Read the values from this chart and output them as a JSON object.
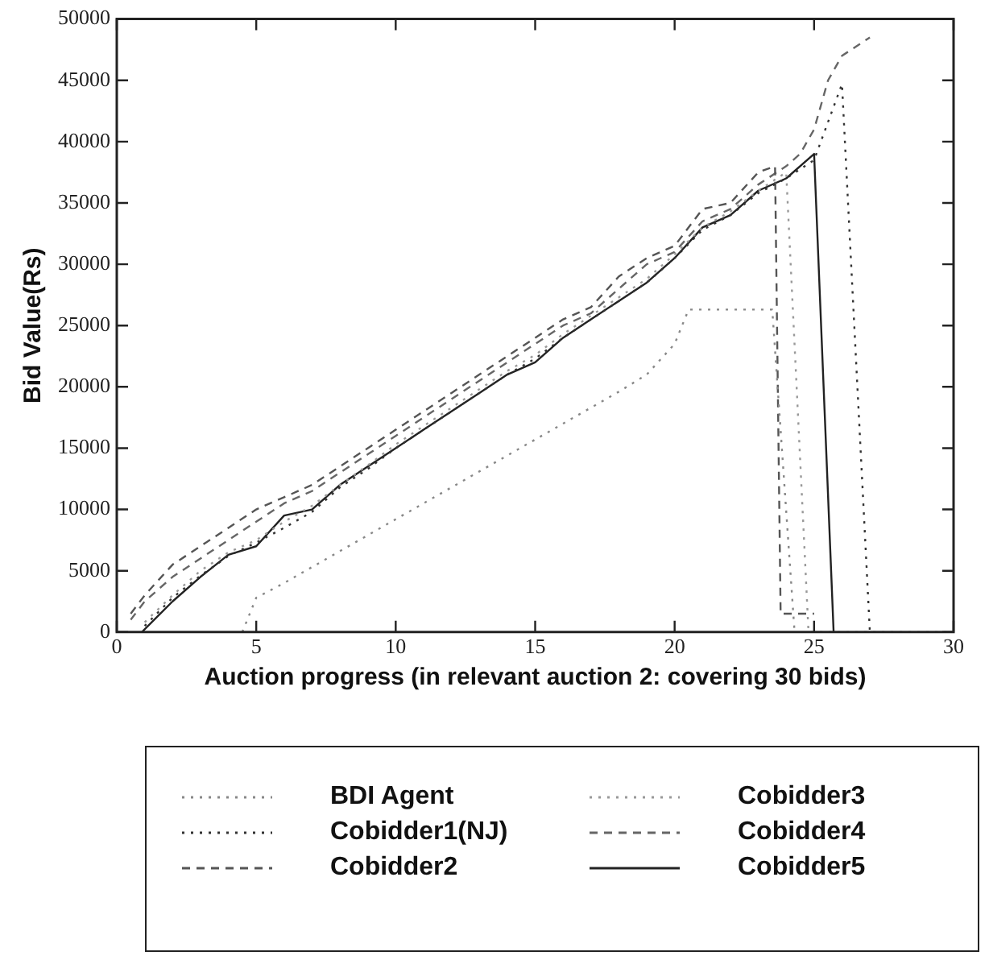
{
  "chart_data": {
    "type": "line",
    "xlabel": "Auction progress (in relevant auction 2: covering 30 bids)",
    "ylabel": "Bid Value(Rs)",
    "xlim": [
      0,
      30
    ],
    "ylim": [
      0,
      50000
    ],
    "xticks": [
      0,
      5,
      10,
      15,
      20,
      25,
      30
    ],
    "yticks": [
      0,
      5000,
      10000,
      15000,
      20000,
      25000,
      30000,
      35000,
      40000,
      45000,
      50000
    ],
    "grid": false,
    "legend": "bottom",
    "marker": "none",
    "series": [
      {
        "name": "BDI Agent",
        "color": "#888888",
        "line_style": "dotted",
        "x": [
          4.5,
          5,
          6,
          7,
          8,
          9,
          10,
          11,
          12,
          13,
          14,
          15,
          16,
          17,
          18,
          19,
          20,
          20.5,
          23.5,
          24.3
        ],
        "values": [
          0,
          2800,
          4000,
          5300,
          6600,
          7900,
          9200,
          10500,
          11800,
          13100,
          14400,
          15700,
          17000,
          18300,
          19600,
          21000,
          23500,
          26300,
          26300,
          0
        ]
      },
      {
        "name": "Cobidder1(NJ)",
        "color": "#333333",
        "line_style": "dotted",
        "x": [
          1,
          2,
          3,
          4,
          5,
          6,
          7,
          8,
          9,
          10,
          11,
          12,
          13,
          14,
          15,
          16,
          17,
          18,
          19,
          20,
          21,
          22,
          23,
          24,
          25,
          26,
          27
        ],
        "values": [
          500,
          2800,
          4600,
          6200,
          7300,
          8500,
          9800,
          11800,
          13300,
          15000,
          16500,
          18000,
          19500,
          21000,
          22300,
          24000,
          25500,
          27000,
          28500,
          30500,
          32800,
          34000,
          35800,
          37000,
          38500,
          44700,
          0
        ]
      },
      {
        "name": "Cobidder2",
        "color": "#555555",
        "line_style": "dashed",
        "x": [
          0.5,
          1,
          2,
          3,
          4,
          5,
          6,
          7,
          8,
          9,
          10,
          11,
          12,
          13,
          14,
          15,
          16,
          17,
          18,
          19,
          20,
          21,
          22,
          23,
          23.6,
          23.8,
          25
        ],
        "values": [
          1500,
          3000,
          5500,
          7000,
          8500,
          10000,
          11000,
          12000,
          13500,
          15000,
          16500,
          18000,
          19500,
          21000,
          22500,
          24000,
          25500,
          26500,
          29000,
          30500,
          31500,
          34500,
          35000,
          37500,
          38000,
          1500,
          1500
        ]
      },
      {
        "name": "Cobidder3",
        "color": "#999999",
        "line_style": "dotted",
        "x": [
          1,
          2,
          3,
          4,
          5,
          6,
          7,
          8,
          9,
          10,
          11,
          12,
          13,
          14,
          15,
          16,
          17,
          18,
          19,
          20,
          21,
          22,
          23,
          24,
          24.8,
          27,
          30
        ],
        "values": [
          800,
          3000,
          5000,
          6500,
          7500,
          9000,
          10300,
          12000,
          13600,
          15300,
          16800,
          18300,
          19800,
          21300,
          22600,
          24300,
          25800,
          27300,
          28800,
          30800,
          33000,
          34300,
          36000,
          37500,
          0,
          0,
          0
        ]
      },
      {
        "name": "Cobidder4",
        "color": "#666666",
        "line_style": "dashed",
        "x": [
          0.5,
          1,
          2,
          3,
          4,
          5,
          6,
          7,
          8,
          9,
          10,
          11,
          12,
          13,
          14,
          15,
          16,
          17,
          18,
          19,
          20,
          21,
          22,
          23,
          24,
          24.5,
          25,
          25.5,
          26,
          27
        ],
        "values": [
          1000,
          2500,
          4500,
          6000,
          7500,
          9000,
          10500,
          11500,
          13000,
          14500,
          16000,
          17500,
          19000,
          20500,
          22000,
          23500,
          25000,
          26000,
          28000,
          30000,
          31000,
          33500,
          34500,
          36500,
          38000,
          39000,
          41000,
          45000,
          47000,
          48500
        ]
      },
      {
        "name": "Cobidder5",
        "color": "#222222",
        "line_style": "solid",
        "x": [
          0.9,
          2,
          3,
          4,
          5,
          6,
          7,
          8,
          9,
          10,
          11,
          12,
          13,
          14,
          15,
          16,
          17,
          18,
          19,
          20,
          21,
          22,
          23,
          24,
          25,
          25.7
        ],
        "values": [
          0,
          2500,
          4500,
          6300,
          7000,
          9500,
          10000,
          12000,
          13500,
          15000,
          16500,
          18000,
          19500,
          21000,
          22000,
          24000,
          25500,
          27000,
          28500,
          30500,
          33000,
          34000,
          36000,
          37000,
          39000,
          0
        ]
      }
    ]
  }
}
